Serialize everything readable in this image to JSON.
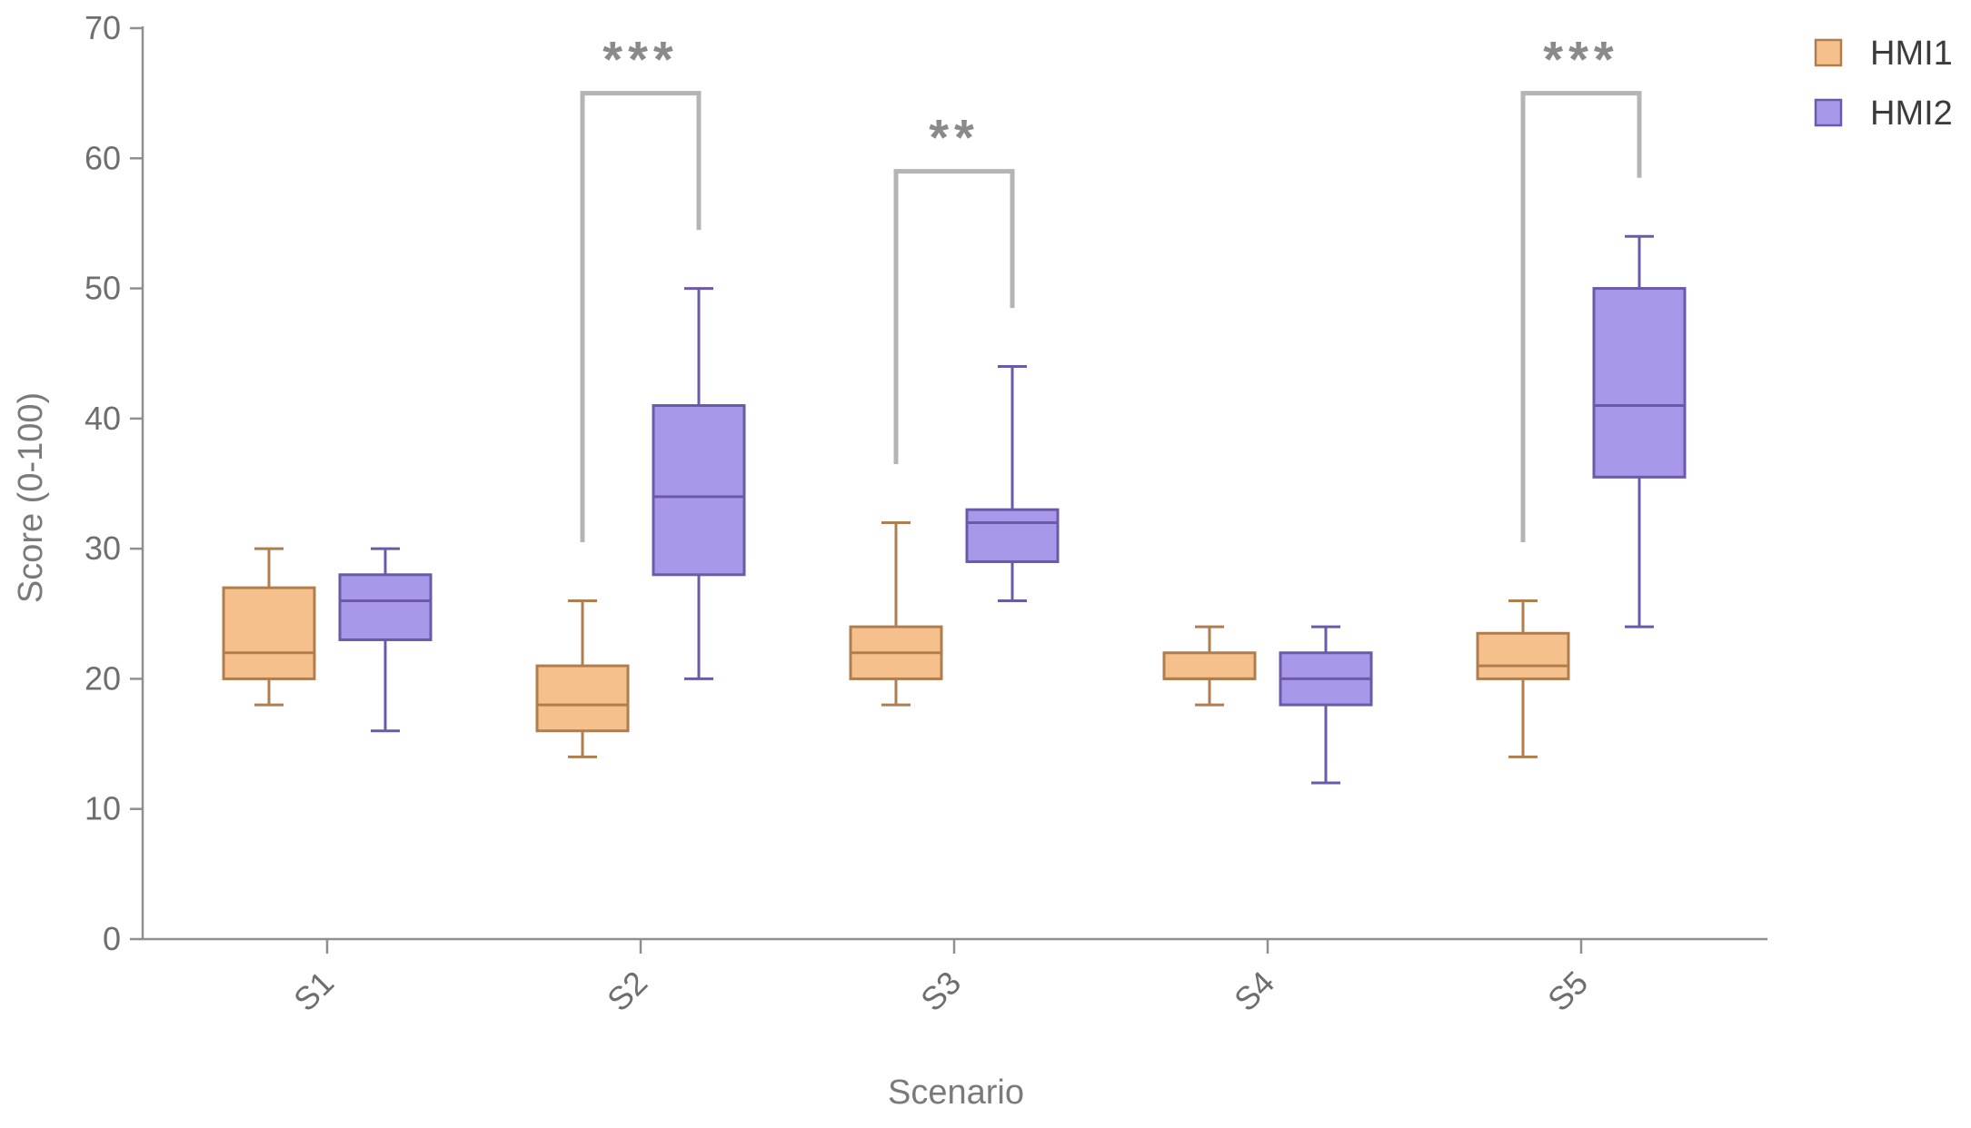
{
  "chart_data": {
    "type": "boxplot",
    "title": "",
    "xlabel": "Scenario",
    "ylabel": "Score  (0-100)",
    "ylim": [
      0,
      70
    ],
    "yticks": [
      0,
      10,
      20,
      30,
      40,
      50,
      60,
      70
    ],
    "categories": [
      "S1",
      "S2",
      "S3",
      "S4",
      "S5"
    ],
    "legend_position": "top-right",
    "series": [
      {
        "name": "HMI1",
        "fill": "#f5c08c",
        "stroke": "#b07e4e",
        "boxes": [
          {
            "category": "S1",
            "min": 18,
            "q1": 20,
            "median": 22,
            "q3": 27,
            "max": 30
          },
          {
            "category": "S2",
            "min": 14,
            "q1": 16,
            "median": 18,
            "q3": 21,
            "max": 26
          },
          {
            "category": "S3",
            "min": 18,
            "q1": 20,
            "median": 22,
            "q3": 24,
            "max": 32
          },
          {
            "category": "S4",
            "min": 18,
            "q1": 20,
            "median": 20,
            "q3": 22,
            "max": 24
          },
          {
            "category": "S5",
            "min": 14,
            "q1": 20,
            "median": 21,
            "q3": 23.5,
            "max": 26
          }
        ]
      },
      {
        "name": "HMI2",
        "fill": "#a898ea",
        "stroke": "#6b5aa8",
        "boxes": [
          {
            "category": "S1",
            "min": 16,
            "q1": 23,
            "median": 26,
            "q3": 28,
            "max": 30
          },
          {
            "category": "S2",
            "min": 20,
            "q1": 28,
            "median": 34,
            "q3": 41,
            "max": 50
          },
          {
            "category": "S3",
            "min": 26,
            "q1": 29,
            "median": 32,
            "q3": 33,
            "max": 44
          },
          {
            "category": "S4",
            "min": 12,
            "q1": 18,
            "median": 20,
            "q3": 22,
            "max": 24
          },
          {
            "category": "S5",
            "min": 24,
            "q1": 35.5,
            "median": 41,
            "q3": 50,
            "max": 54
          }
        ]
      }
    ],
    "significance": [
      {
        "category": "S2",
        "label": "***"
      },
      {
        "category": "S3",
        "label": "**"
      },
      {
        "category": "S5",
        "label": "***"
      }
    ]
  }
}
